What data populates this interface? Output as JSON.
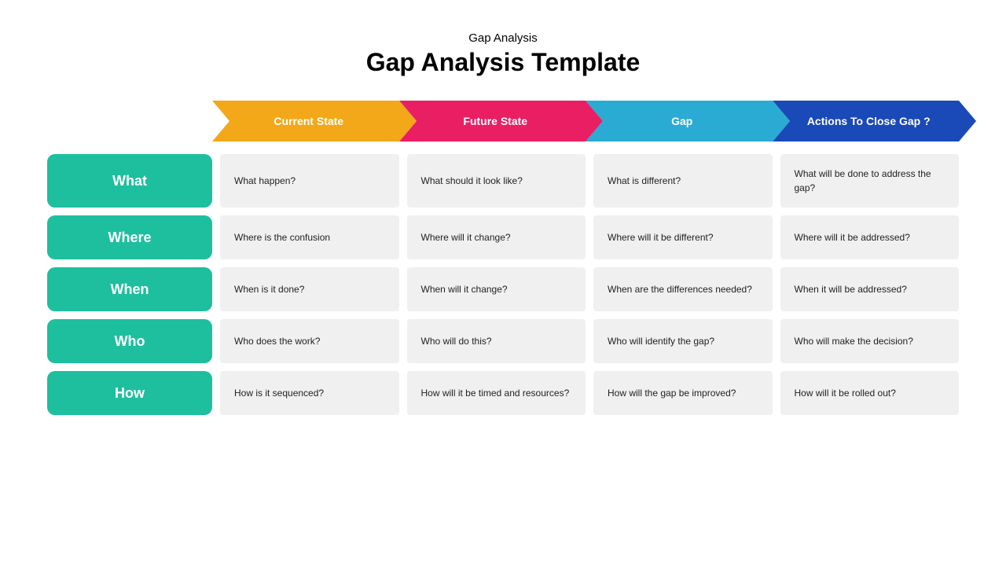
{
  "header": {
    "subtitle": "Gap Analysis",
    "title": "Gap Analysis Template"
  },
  "columns": [
    {
      "label": "Current State",
      "color": "#f2a818"
    },
    {
      "label": "Future State",
      "color": "#e91e63"
    },
    {
      "label": "Gap",
      "color": "#29abd4"
    },
    {
      "label": "Actions To Close Gap ?",
      "color": "#1a49b8"
    }
  ],
  "rows": [
    {
      "label": "What",
      "cells": [
        "What happen?",
        "What should it look like?",
        "What is different?",
        "What will be done to address the gap?"
      ]
    },
    {
      "label": "Where",
      "cells": [
        "Where is the confusion",
        "Where will it change?",
        "Where will it be different?",
        "Where will it be addressed?"
      ]
    },
    {
      "label": "When",
      "cells": [
        "When is it done?",
        "When will it change?",
        "When are the differences needed?",
        "When it will be addressed?"
      ]
    },
    {
      "label": "Who",
      "cells": [
        "Who does the work?",
        "Who will do this?",
        "Who will identify the gap?",
        "Who will make the decision?"
      ]
    },
    {
      "label": "How",
      "cells": [
        "How is it sequenced?",
        "How will it be timed and resources?",
        "How will the gap be improved?",
        "How will it be rolled out?"
      ]
    }
  ],
  "styling": {
    "row_label_color": "#1dbf9e",
    "cell_background": "#f0f0f0",
    "page_background": "#ffffff",
    "title_fontsize": 32,
    "subtitle_fontsize": 15,
    "row_label_fontsize": 18,
    "header_fontsize": 14,
    "cell_fontsize": 12
  }
}
